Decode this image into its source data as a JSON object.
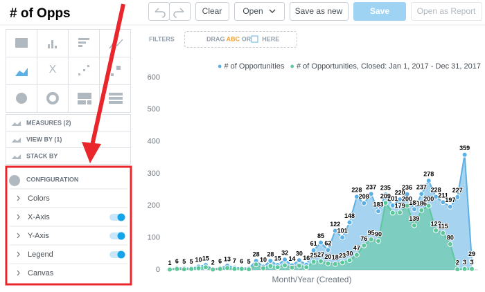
{
  "header": {
    "title": "# of Opps"
  },
  "toolbar": {
    "buttons": [
      "Clear",
      "Open",
      "Save as new",
      "Save",
      "Open as Report"
    ]
  },
  "filters": {
    "label": "FILTERS",
    "drop_zone": [
      "DRAG",
      "ABC",
      "OR",
      "HERE"
    ]
  },
  "sidebar": {
    "sections": [
      "MEASURES (2)",
      "VIEW BY (1)",
      "STACK BY"
    ],
    "configuration": {
      "title": "CONFIGURATION",
      "items": [
        "Colors",
        "X-Axis",
        "Y-Axis",
        "Legend",
        "Canvas"
      ]
    }
  },
  "chart_data": {
    "type": "area",
    "x_label": "Month/Year (Created)",
    "categories": [
      null,
      null,
      null,
      null,
      null,
      null,
      null,
      null,
      null,
      null,
      null,
      null,
      null,
      null,
      null,
      null,
      null,
      null,
      null,
      null,
      null,
      null,
      null,
      null,
      null,
      null,
      null,
      null,
      null,
      null,
      null,
      null,
      null,
      null,
      null,
      null,
      null,
      null,
      null,
      null,
      null,
      null,
      null
    ],
    "series": [
      {
        "name": "# of Opportunities",
        "color": "#5cb0e4",
        "values": [
          1,
          6,
          5,
          5,
          10,
          15,
          2,
          6,
          13,
          7,
          6,
          5,
          28,
          10,
          28,
          15,
          32,
          14,
          30,
          16,
          61,
          85,
          62,
          122,
          101,
          148,
          228,
          208,
          237,
          183,
          235,
          201,
          220,
          236,
          189,
          237,
          278,
          228,
          211,
          197,
          227,
          359,
          29
        ]
      },
      {
        "name": "# of Opportunities, Closed: Jan 1, 2017 - Dec 31, 2017",
        "color": "#5cc79a",
        "values": [
          1,
          3,
          2,
          3,
          5,
          8,
          1,
          3,
          6,
          3,
          3,
          2,
          17,
          5,
          12,
          8,
          14,
          7,
          13,
          8,
          25,
          27,
          20,
          18,
          23,
          30,
          47,
          76,
          95,
          90,
          209,
          178,
          179,
          200,
          139,
          186,
          200,
          123,
          115,
          80,
          2,
          3,
          3
        ]
      }
    ],
    "ylim": [
      0,
      600
    ],
    "yticks": [
      0,
      100,
      200,
      300,
      400,
      500,
      600
    ],
    "legend": "top-right",
    "grid": false
  }
}
